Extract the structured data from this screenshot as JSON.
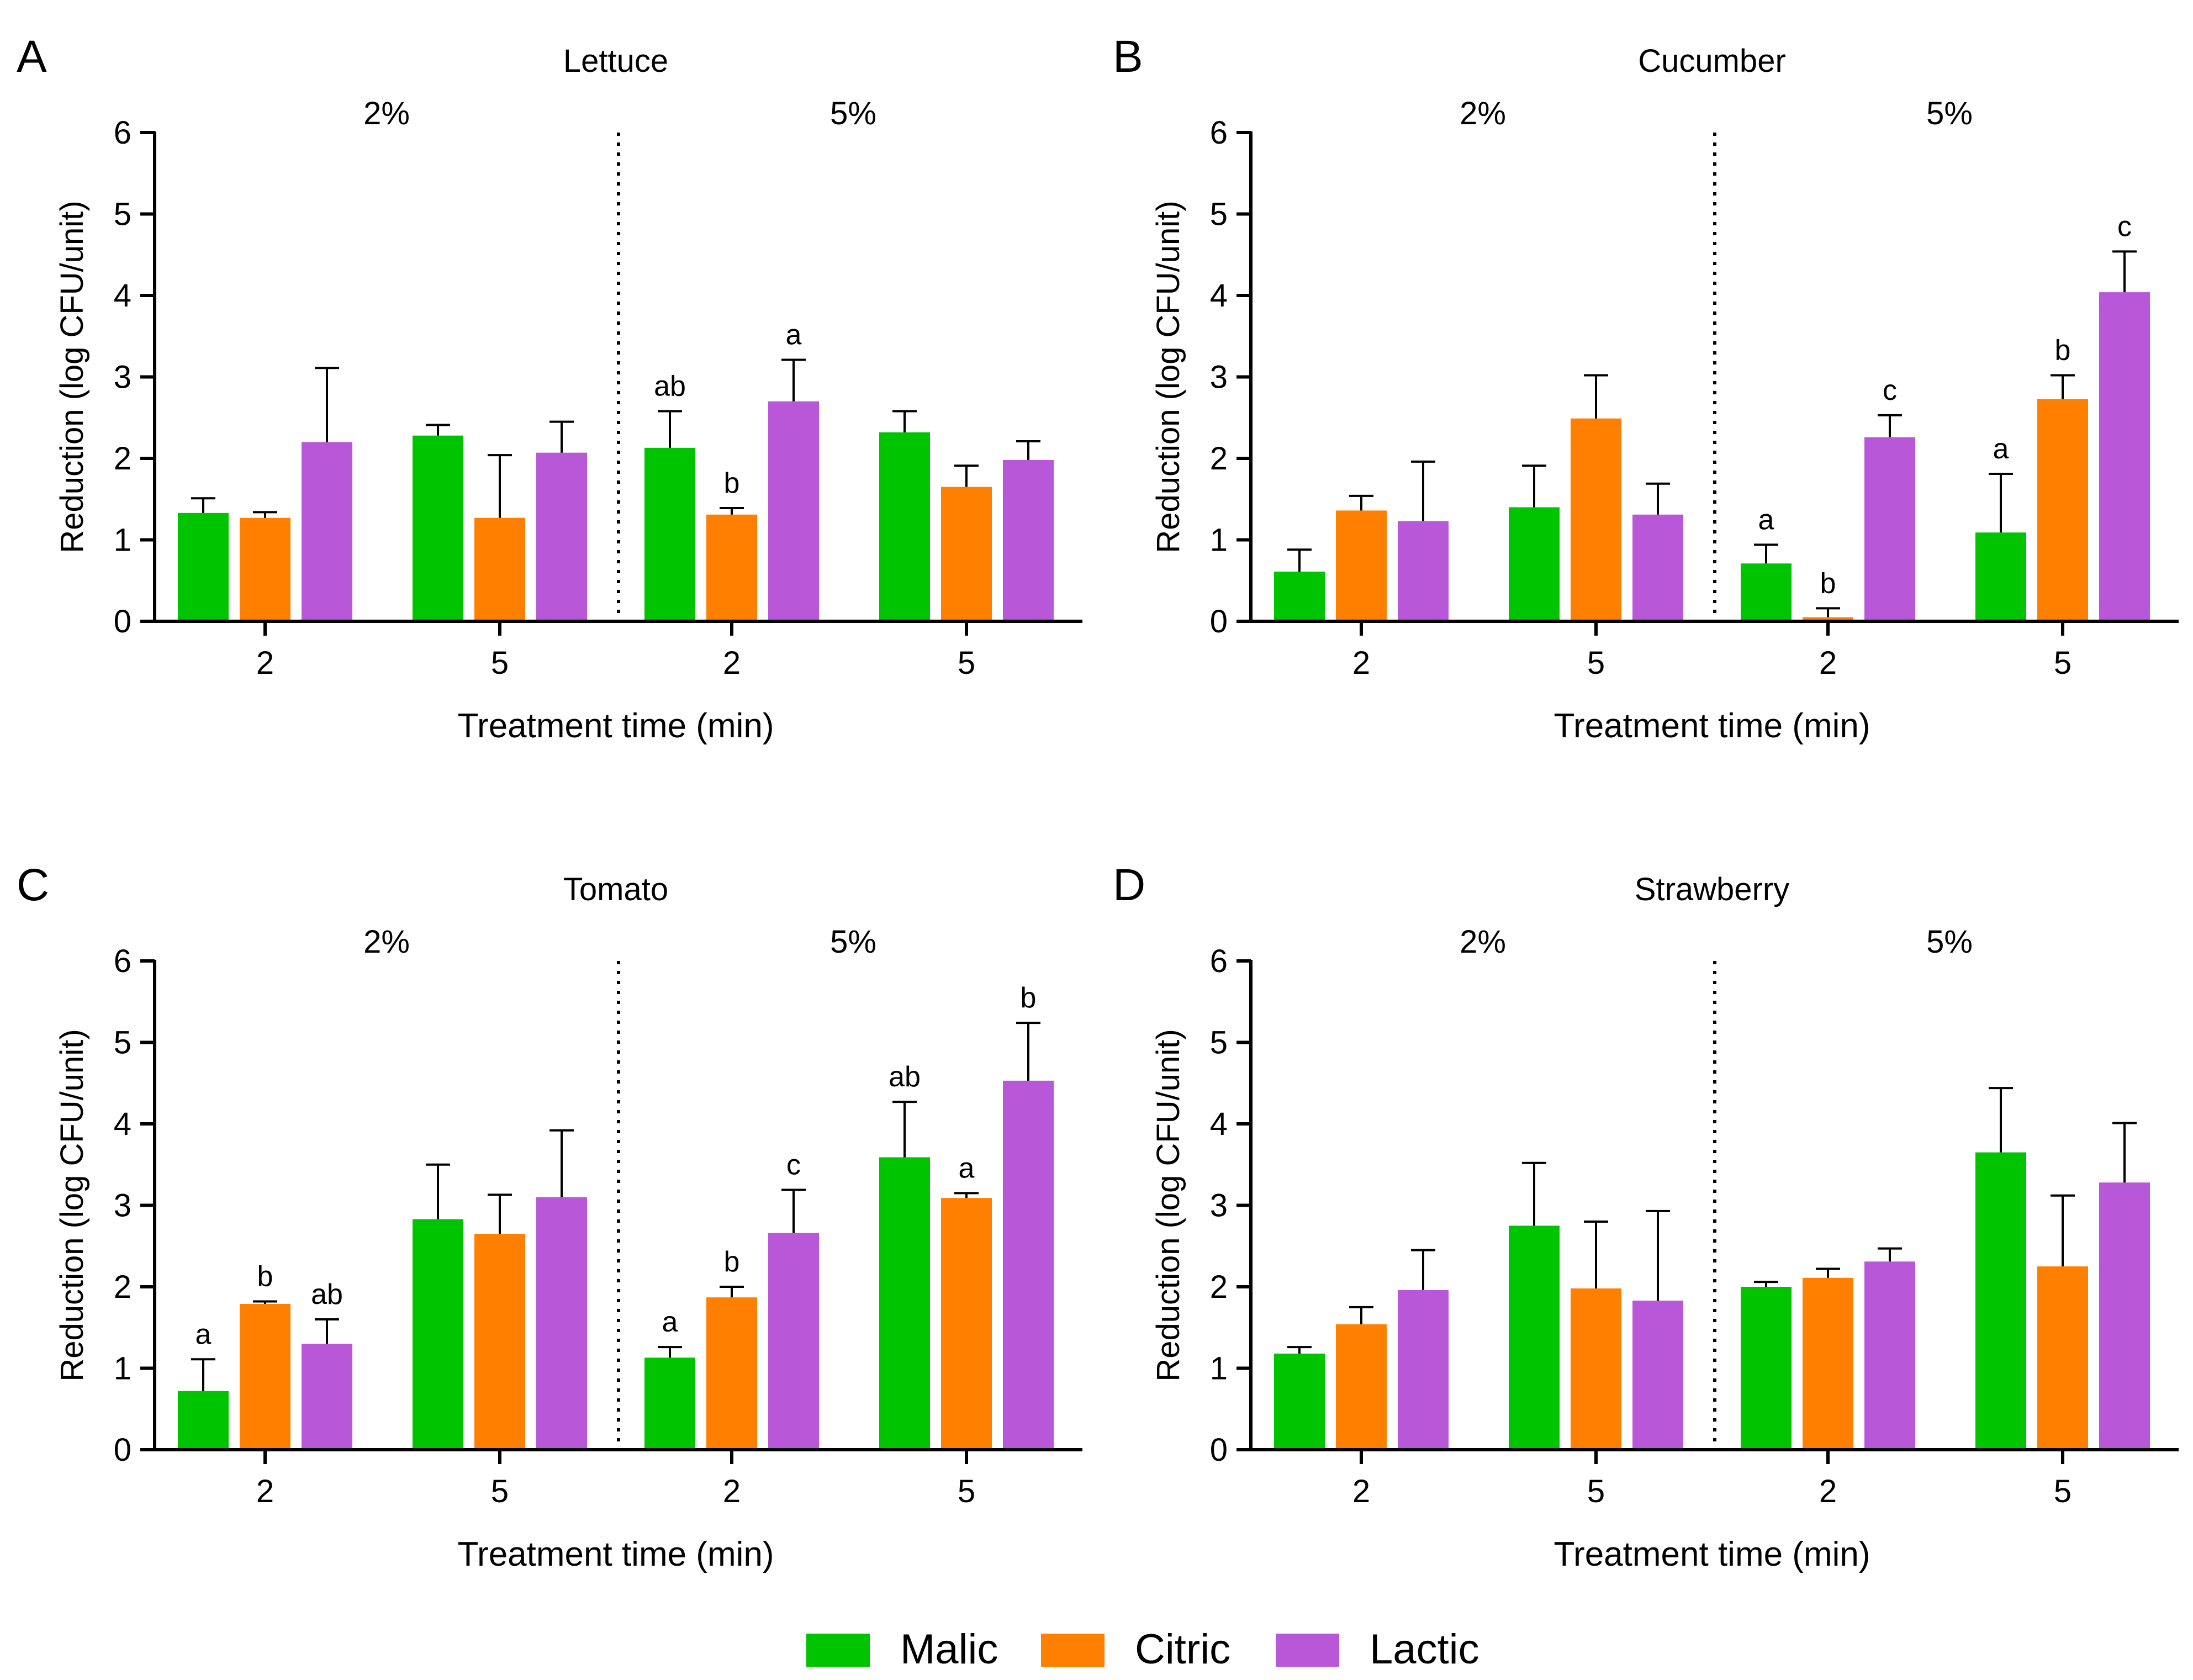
{
  "legend": {
    "position": "bottom-center",
    "items": [
      {
        "label": "Malic",
        "color": "#00C400"
      },
      {
        "label": "Citric",
        "color": "#FF8000"
      },
      {
        "label": "Lactic",
        "color": "#B957D9"
      }
    ]
  },
  "chart_data": [
    {
      "panel": "A",
      "title": "Lettuce",
      "type": "bar",
      "ylabel": "Reduction (log CFU/unit)",
      "xlabel": "Treatment time (min)",
      "ylim": [
        0,
        6
      ],
      "yticks": [
        "0",
        "1",
        "2",
        "3",
        "4",
        "5",
        "6"
      ],
      "concentrations": [
        "2%",
        "5%"
      ],
      "categories": [
        "2",
        "5",
        "2",
        "5"
      ],
      "series": [
        {
          "name": "Malic",
          "values": [
            1.33,
            2.28,
            2.13,
            2.32
          ],
          "errors": [
            0.18,
            0.13,
            0.45,
            0.26
          ]
        },
        {
          "name": "Citric",
          "values": [
            1.27,
            1.27,
            1.31,
            1.65
          ],
          "errors": [
            0.07,
            0.77,
            0.08,
            0.26
          ]
        },
        {
          "name": "Lactic",
          "values": [
            2.2,
            2.07,
            2.7,
            1.98
          ],
          "errors": [
            0.91,
            0.38,
            0.51,
            0.23
          ]
        }
      ],
      "annotations": [
        {
          "category": 2,
          "series": 0,
          "text": "ab"
        },
        {
          "category": 2,
          "series": 1,
          "text": "b"
        },
        {
          "category": 2,
          "series": 2,
          "text": "a"
        }
      ]
    },
    {
      "panel": "B",
      "title": "Cucumber",
      "type": "bar",
      "ylabel": "Reduction (log CFU/unit)",
      "xlabel": "Treatment time (min)",
      "ylim": [
        0,
        6
      ],
      "yticks": [
        "0",
        "1",
        "2",
        "3",
        "4",
        "5",
        "6"
      ],
      "concentrations": [
        "2%",
        "5%"
      ],
      "categories": [
        "2",
        "5",
        "2",
        "5"
      ],
      "series": [
        {
          "name": "Malic",
          "values": [
            0.61,
            1.4,
            0.71,
            1.09
          ],
          "errors": [
            0.27,
            0.51,
            0.23,
            0.72
          ]
        },
        {
          "name": "Citric",
          "values": [
            1.36,
            2.49,
            0.05,
            2.73
          ],
          "errors": [
            0.18,
            0.53,
            0.11,
            0.29
          ]
        },
        {
          "name": "Lactic",
          "values": [
            1.23,
            1.31,
            2.26,
            4.04
          ],
          "errors": [
            0.73,
            0.38,
            0.27,
            0.5
          ]
        }
      ],
      "annotations": [
        {
          "category": 2,
          "series": 0,
          "text": "a"
        },
        {
          "category": 2,
          "series": 1,
          "text": "b"
        },
        {
          "category": 2,
          "series": 2,
          "text": "c"
        },
        {
          "category": 3,
          "series": 0,
          "text": "a"
        },
        {
          "category": 3,
          "series": 1,
          "text": "b"
        },
        {
          "category": 3,
          "series": 2,
          "text": "c"
        }
      ]
    },
    {
      "panel": "C",
      "title": "Tomato",
      "type": "bar",
      "ylabel": "Reduction (log CFU/unit)",
      "xlabel": "Treatment time (min)",
      "ylim": [
        0,
        6
      ],
      "yticks": [
        "0",
        "1",
        "2",
        "3",
        "4",
        "5",
        "6"
      ],
      "concentrations": [
        "2%",
        "5%"
      ],
      "categories": [
        "2",
        "5",
        "2",
        "5"
      ],
      "series": [
        {
          "name": "Malic",
          "values": [
            0.72,
            2.83,
            1.13,
            3.59
          ],
          "errors": [
            0.39,
            0.67,
            0.13,
            0.68
          ]
        },
        {
          "name": "Citric",
          "values": [
            1.79,
            2.65,
            1.87,
            3.09
          ],
          "errors": [
            0.03,
            0.48,
            0.13,
            0.06
          ]
        },
        {
          "name": "Lactic",
          "values": [
            1.3,
            3.1,
            2.66,
            4.53
          ],
          "errors": [
            0.3,
            0.82,
            0.53,
            0.71
          ]
        }
      ],
      "annotations": [
        {
          "category": 0,
          "series": 0,
          "text": "a"
        },
        {
          "category": 0,
          "series": 1,
          "text": "b"
        },
        {
          "category": 0,
          "series": 2,
          "text": "ab"
        },
        {
          "category": 2,
          "series": 0,
          "text": "a"
        },
        {
          "category": 2,
          "series": 1,
          "text": "b"
        },
        {
          "category": 2,
          "series": 2,
          "text": "c"
        },
        {
          "category": 3,
          "series": 0,
          "text": "ab"
        },
        {
          "category": 3,
          "series": 1,
          "text": "a"
        },
        {
          "category": 3,
          "series": 2,
          "text": "b"
        }
      ]
    },
    {
      "panel": "D",
      "title": "Strawberry",
      "type": "bar",
      "ylabel": "Reduction (log CFU/unit)",
      "xlabel": "Treatment time (min)",
      "ylim": [
        0,
        6
      ],
      "yticks": [
        "0",
        "1",
        "2",
        "3",
        "4",
        "5",
        "6"
      ],
      "concentrations": [
        "2%",
        "5%"
      ],
      "categories": [
        "2",
        "5",
        "2",
        "5"
      ],
      "series": [
        {
          "name": "Malic",
          "values": [
            1.18,
            2.75,
            2.0,
            3.65
          ],
          "errors": [
            0.08,
            0.77,
            0.06,
            0.79
          ]
        },
        {
          "name": "Citric",
          "values": [
            1.54,
            1.98,
            2.11,
            2.25
          ],
          "errors": [
            0.21,
            0.82,
            0.11,
            0.87
          ]
        },
        {
          "name": "Lactic",
          "values": [
            1.96,
            1.83,
            2.31,
            3.28
          ],
          "errors": [
            0.49,
            1.1,
            0.16,
            0.73
          ]
        }
      ],
      "annotations": []
    }
  ]
}
